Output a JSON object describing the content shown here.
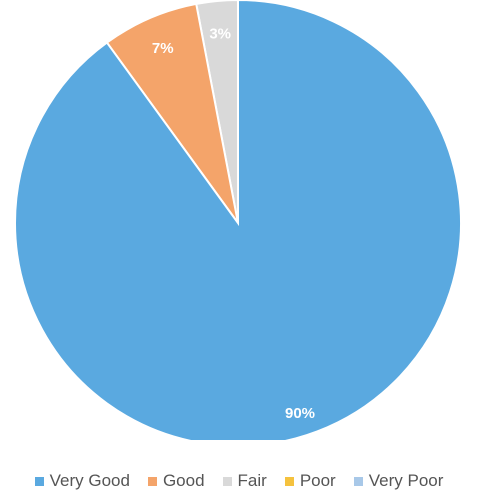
{
  "chart_data": {
    "type": "pie",
    "slices": [
      {
        "name": "Very Good",
        "value": 90,
        "label": "90%",
        "color": "#5aa9e0"
      },
      {
        "name": "Good",
        "value": 7,
        "label": "7%",
        "color": "#f4a46a"
      },
      {
        "name": "Fair",
        "value": 3,
        "label": "3%",
        "color": "#d9d9d9"
      },
      {
        "name": "Poor",
        "value": 0,
        "label": "",
        "color": "#f5c23e"
      },
      {
        "name": "Very Poor",
        "value": 0,
        "label": "",
        "color": "#a8c8e8"
      }
    ],
    "legend_position": "bottom",
    "start_angle_deg": 0,
    "direction": "counterclockwise"
  }
}
